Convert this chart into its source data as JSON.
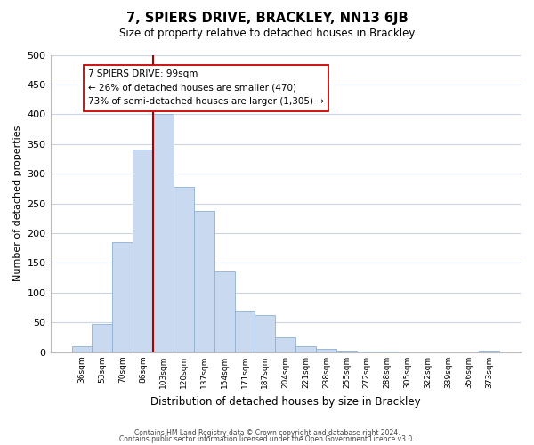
{
  "title": "7, SPIERS DRIVE, BRACKLEY, NN13 6JB",
  "subtitle": "Size of property relative to detached houses in Brackley",
  "xlabel": "Distribution of detached houses by size in Brackley",
  "ylabel": "Number of detached properties",
  "bar_labels": [
    "36sqm",
    "53sqm",
    "70sqm",
    "86sqm",
    "103sqm",
    "120sqm",
    "137sqm",
    "154sqm",
    "171sqm",
    "187sqm",
    "204sqm",
    "221sqm",
    "238sqm",
    "255sqm",
    "272sqm",
    "288sqm",
    "305sqm",
    "322sqm",
    "339sqm",
    "356sqm",
    "373sqm"
  ],
  "bar_values": [
    10,
    47,
    185,
    340,
    400,
    278,
    238,
    135,
    70,
    62,
    25,
    10,
    5,
    2,
    1,
    1,
    0,
    0,
    0,
    0,
    2
  ],
  "bar_color": "#c9d9f0",
  "bar_edge_color": "#8fb0d4",
  "highlight_line_color": "#aa0000",
  "annotation_title": "7 SPIERS DRIVE: 99sqm",
  "annotation_line1": "← 26% of detached houses are smaller (470)",
  "annotation_line2": "73% of semi-detached houses are larger (1,305) →",
  "annotation_box_facecolor": "#ffffff",
  "annotation_box_edgecolor": "#cc0000",
  "ylim_max": 500,
  "yticks": [
    0,
    50,
    100,
    150,
    200,
    250,
    300,
    350,
    400,
    450,
    500
  ],
  "footer_line1": "Contains HM Land Registry data © Crown copyright and database right 2024.",
  "footer_line2": "Contains public sector information licensed under the Open Government Licence v3.0.",
  "bg_color": "#ffffff",
  "grid_color": "#ccd5e5",
  "highlight_bar_index": 4
}
